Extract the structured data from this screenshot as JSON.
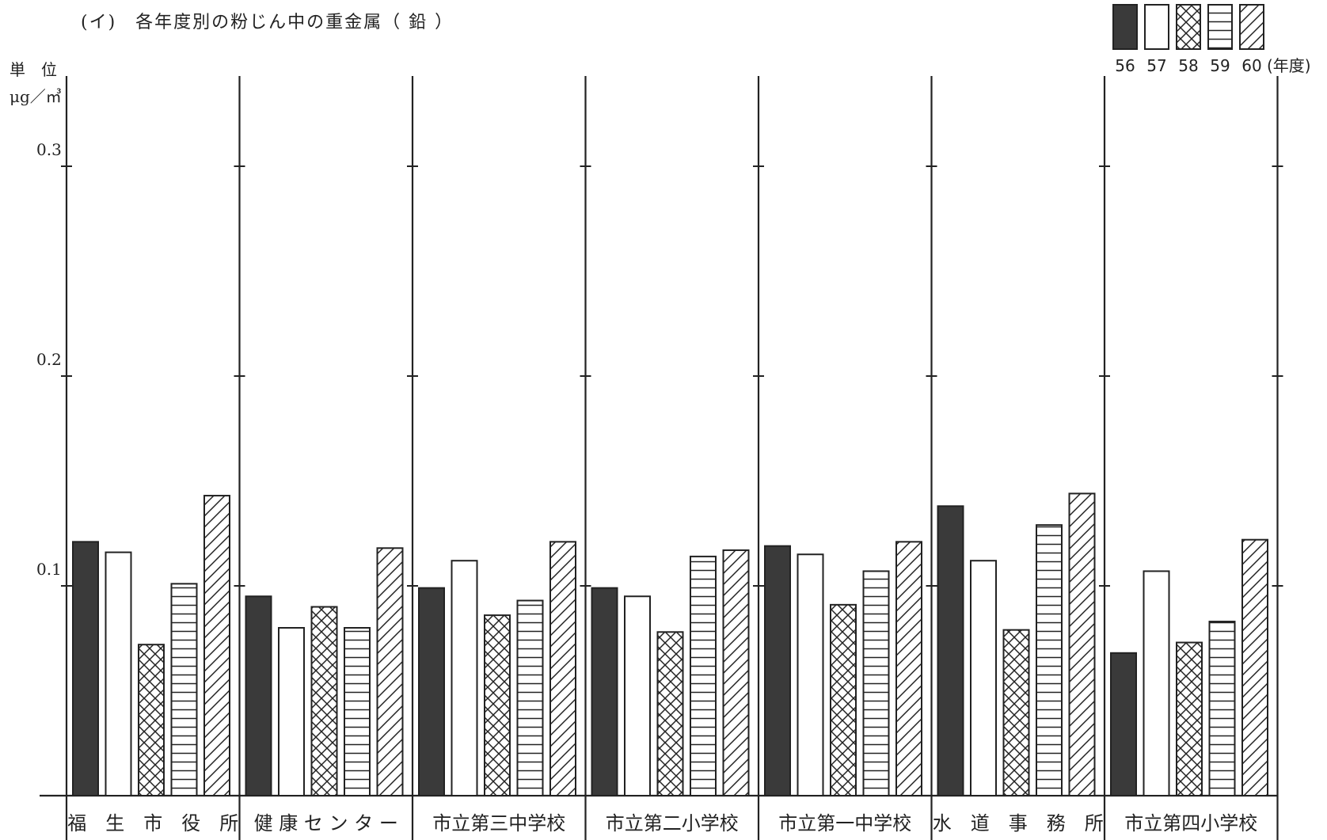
{
  "chart_data": {
    "type": "bar",
    "title": "(イ)　各年度別の粉じん中の重金属（ 鉛 ）",
    "unit_line1": "単　位",
    "unit_line2": "μg／㎥",
    "yticks": [
      "0.1",
      "0.2",
      "0.3"
    ],
    "ylim": [
      0,
      0.3
    ],
    "legend_suffix": "(年度)",
    "categories": [
      "福　生　市　役　所",
      "健 康 セ ン タ ー",
      "市立第三中学校",
      "市立第二小学校",
      "市立第一中学校",
      "水　道　事　務　所",
      "市立第四小学校"
    ],
    "series": [
      {
        "name": "56",
        "pattern": "solid",
        "values": [
          0.121,
          0.095,
          0.099,
          0.099,
          0.119,
          0.138,
          0.068
        ]
      },
      {
        "name": "57",
        "pattern": "blank",
        "values": [
          0.116,
          0.08,
          0.112,
          0.095,
          0.115,
          0.112,
          0.107
        ]
      },
      {
        "name": "58",
        "pattern": "cross",
        "values": [
          0.072,
          0.09,
          0.086,
          0.078,
          0.091,
          0.079,
          0.073
        ]
      },
      {
        "name": "59",
        "pattern": "hlines",
        "values": [
          0.101,
          0.08,
          0.093,
          0.114,
          0.107,
          0.129,
          0.083
        ]
      },
      {
        "name": "60",
        "pattern": "diag",
        "values": [
          0.143,
          0.118,
          0.121,
          0.117,
          0.121,
          0.144,
          0.122
        ]
      }
    ],
    "colors": {
      "ink": "#222222",
      "solid": "#3a3a3a"
    },
    "grid": false,
    "legend_position": "top-right"
  }
}
